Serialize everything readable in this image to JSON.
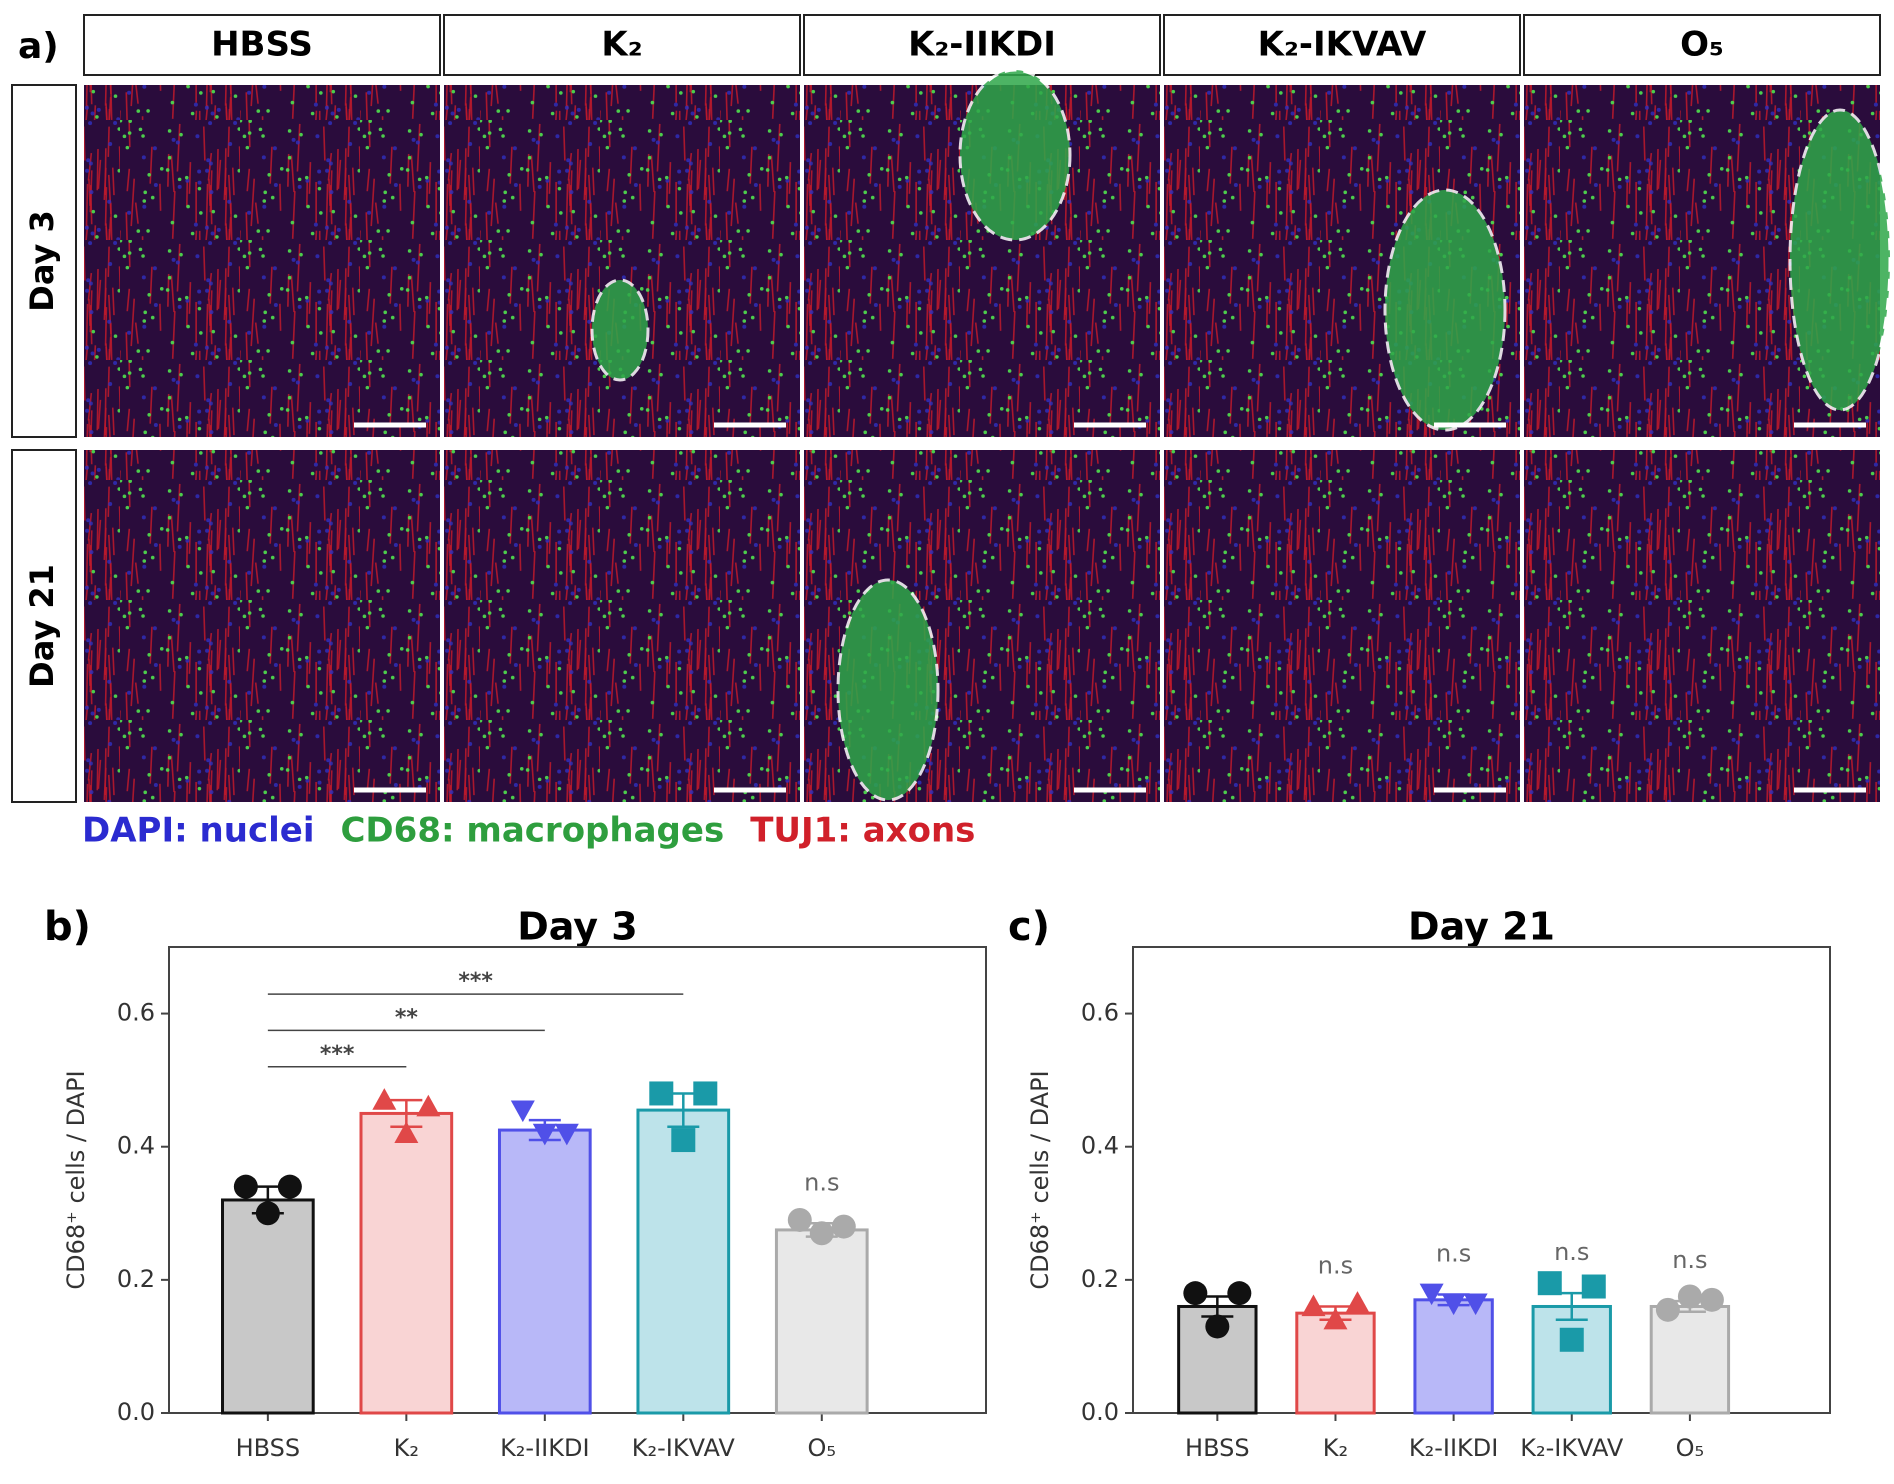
{
  "panel_a": {
    "label": "a)",
    "columns": [
      "HBSS",
      "K₂",
      "K₂-IIKDI",
      "K₂-IKVAV",
      "O₅"
    ],
    "rows": [
      "Day 3",
      "Day 21"
    ],
    "legend": [
      {
        "text": "DAPI: nuclei",
        "color": "#2b2bd0"
      },
      {
        "text": "CD68: macrophages",
        "color": "#2e9e3e"
      },
      {
        "text": "TUJ1: axons",
        "color": "#d0202a"
      }
    ]
  },
  "chart_data": [
    {
      "type": "bar",
      "panel_label": "b)",
      "title": "Day 3",
      "y_label": "CD68⁺ cells / DAPI",
      "categories": [
        "HBSS",
        "K₂",
        "K₂-IIKDI",
        "K₂-IKVAV",
        "O₅"
      ],
      "values": [
        0.32,
        0.45,
        0.425,
        0.455,
        0.275
      ],
      "errors": [
        0.02,
        0.02,
        0.015,
        0.025,
        0.01
      ],
      "points": [
        [
          0.34,
          0.3,
          0.34
        ],
        [
          0.47,
          0.42,
          0.46
        ],
        [
          0.455,
          0.42,
          0.42
        ],
        [
          0.48,
          0.41,
          0.48
        ],
        [
          0.29,
          0.27,
          0.28
        ]
      ],
      "colors": [
        "#111111",
        "#e04848",
        "#5050e8",
        "#1a9aa8",
        "#aaaaaa"
      ],
      "fill_colors": [
        "#c8c8c8",
        "#f9d4d4",
        "#b8b8f8",
        "#bde3ea",
        "#e8e8e8"
      ],
      "markers": [
        "circle",
        "triangle-up",
        "triangle-down",
        "square",
        "circle"
      ],
      "ylim": [
        0,
        0.7
      ],
      "yticks": [
        {
          "value": 0,
          "label": "0.0"
        },
        0.2,
        0.4,
        0.6
      ],
      "significance": [
        null,
        "***",
        "**",
        "***",
        null
      ],
      "value_annotations": [
        null,
        null,
        null,
        null,
        "n.s"
      ]
    },
    {
      "type": "bar",
      "panel_label": "c)",
      "title": "Day 21",
      "y_label": "CD68⁺ cells / DAPI",
      "categories": [
        "HBSS",
        "K₂",
        "K₂-IIKDI",
        "K₂-IKVAV",
        "O₅"
      ],
      "values": [
        0.16,
        0.15,
        0.17,
        0.16,
        0.16
      ],
      "errors": [
        0.015,
        0.01,
        0.008,
        0.02,
        0.008
      ],
      "points": [
        [
          0.18,
          0.13,
          0.18
        ],
        [
          0.16,
          0.14,
          0.165
        ],
        [
          0.18,
          0.165,
          0.165
        ],
        [
          0.195,
          0.11,
          0.19
        ],
        [
          0.155,
          0.175,
          0.17
        ]
      ],
      "colors": [
        "#111111",
        "#e04848",
        "#5050e8",
        "#1a9aa8",
        "#aaaaaa"
      ],
      "fill_colors": [
        "#c8c8c8",
        "#f9d4d4",
        "#b8b8f8",
        "#bde3ea",
        "#e8e8e8"
      ],
      "markers": [
        "circle",
        "triangle-up",
        "triangle-down",
        "square",
        "circle"
      ],
      "ylim": [
        0,
        0.7
      ],
      "yticks": [
        {
          "value": 0,
          "label": "0.0"
        },
        0.2,
        0.4,
        0.6
      ],
      "value_annotations": [
        null,
        "n.s",
        "n.s",
        "n.s",
        "n.s"
      ]
    }
  ]
}
